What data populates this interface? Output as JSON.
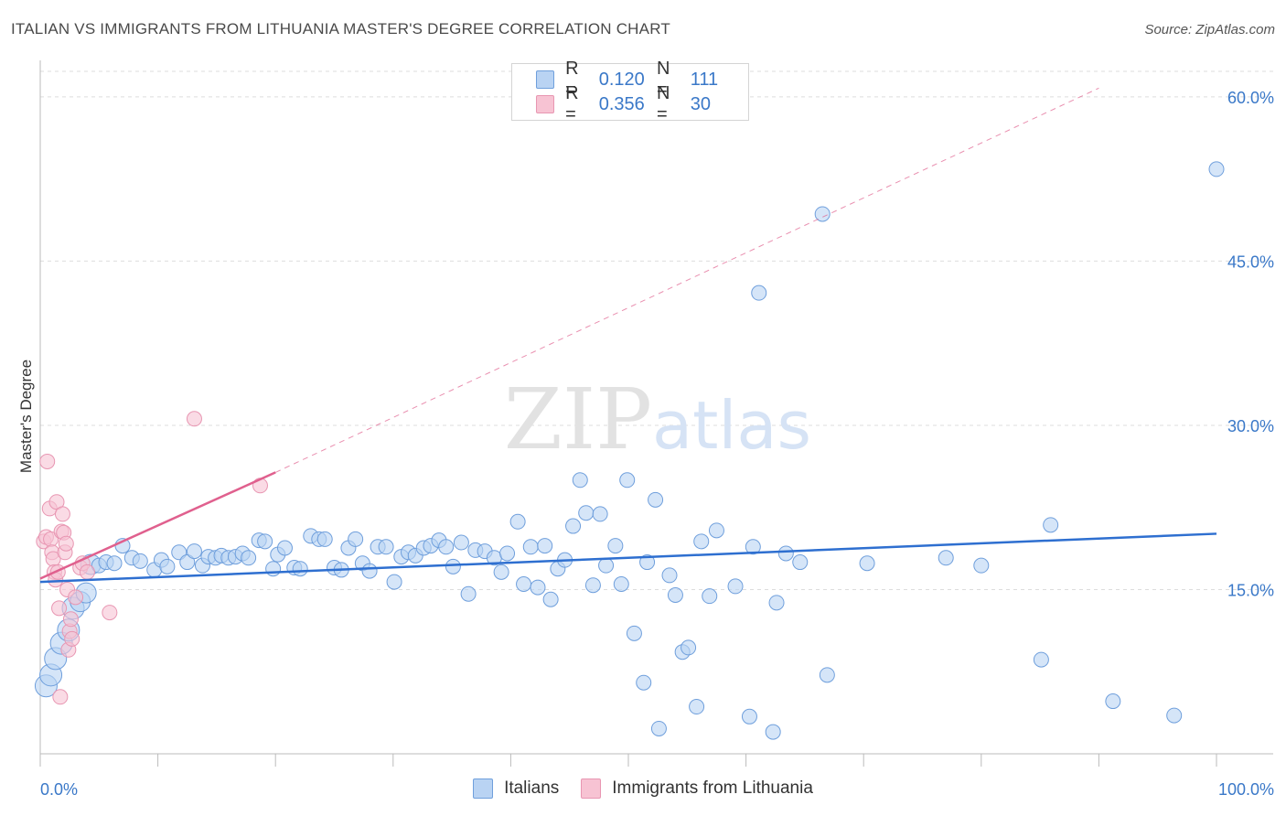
{
  "header": {
    "title": "ITALIAN VS IMMIGRANTS FROM LITHUANIA MASTER'S DEGREE CORRELATION CHART",
    "source": "Source: ZipAtlas.com"
  },
  "watermark": {
    "zip": "ZIP",
    "atlas": "atlas"
  },
  "legend": {
    "rows": [
      {
        "r_label": "R =",
        "r_value": "0.120",
        "n_label": "N =",
        "n_value": "111"
      },
      {
        "r_label": "R =",
        "r_value": "0.356",
        "n_label": "N =",
        "n_value": "30"
      }
    ]
  },
  "colors": {
    "italians_fill": "#b9d3f3",
    "italians_stroke": "#6f9fdc",
    "italians_line": "#2e6fd0",
    "lithuania_fill": "#f7c3d3",
    "lithuania_stroke": "#e896b2",
    "lithuania_line": "#e0608e",
    "grid": "#dddddd",
    "tick_label": "#3a78c8"
  },
  "chart_data": {
    "type": "scatter",
    "title": "ITALIAN VS IMMIGRANTS FROM LITHUANIA MASTER'S DEGREE CORRELATION CHART",
    "xlabel": "",
    "ylabel": "Master's Degree",
    "xlim": [
      0,
      100
    ],
    "ylim": [
      0,
      63
    ],
    "x_tick_labels": [
      "0.0%",
      "100.0%"
    ],
    "y_ticks": [
      15,
      30,
      45,
      60
    ],
    "y_tick_labels": [
      "15.0%",
      "30.0%",
      "45.0%",
      "60.0%"
    ],
    "grid": "horizontal dashed",
    "legend_position": "top-center and bottom",
    "series": [
      {
        "name": "Italians",
        "R": 0.12,
        "N": 111,
        "trend": {
          "x": [
            0,
            100
          ],
          "y": [
            15.7,
            20.1
          ]
        },
        "points": [
          [
            0.5,
            6.2
          ],
          [
            0.9,
            7.2
          ],
          [
            1.3,
            8.7
          ],
          [
            1.8,
            10.1
          ],
          [
            2.4,
            11.3
          ],
          [
            2.8,
            13.3
          ],
          [
            3.4,
            13.9
          ],
          [
            3.9,
            14.7
          ],
          [
            4.3,
            17.3
          ],
          [
            5.0,
            17.2
          ],
          [
            5.6,
            17.5
          ],
          [
            6.3,
            17.4
          ],
          [
            7.0,
            19.0
          ],
          [
            7.8,
            17.9
          ],
          [
            8.5,
            17.6
          ],
          [
            9.7,
            16.8
          ],
          [
            10.3,
            17.7
          ],
          [
            10.8,
            17.1
          ],
          [
            11.8,
            18.4
          ],
          [
            12.5,
            17.5
          ],
          [
            13.1,
            18.5
          ],
          [
            13.8,
            17.2
          ],
          [
            14.3,
            18.0
          ],
          [
            14.9,
            17.9
          ],
          [
            15.4,
            18.1
          ],
          [
            16.0,
            17.9
          ],
          [
            16.6,
            18.0
          ],
          [
            17.2,
            18.3
          ],
          [
            17.7,
            17.9
          ],
          [
            18.6,
            19.5
          ],
          [
            19.1,
            19.4
          ],
          [
            19.8,
            16.9
          ],
          [
            20.2,
            18.2
          ],
          [
            20.8,
            18.8
          ],
          [
            21.6,
            17.0
          ],
          [
            22.1,
            16.9
          ],
          [
            23.0,
            19.9
          ],
          [
            23.7,
            19.6
          ],
          [
            24.2,
            19.6
          ],
          [
            25.0,
            17.0
          ],
          [
            25.6,
            16.8
          ],
          [
            26.2,
            18.8
          ],
          [
            26.8,
            19.6
          ],
          [
            27.4,
            17.4
          ],
          [
            28.0,
            16.7
          ],
          [
            28.7,
            18.9
          ],
          [
            29.4,
            18.9
          ],
          [
            30.1,
            15.7
          ],
          [
            30.7,
            18.0
          ],
          [
            31.3,
            18.4
          ],
          [
            31.9,
            18.1
          ],
          [
            32.6,
            18.8
          ],
          [
            33.2,
            19.0
          ],
          [
            33.9,
            19.5
          ],
          [
            34.5,
            18.9
          ],
          [
            35.1,
            17.1
          ],
          [
            35.8,
            19.3
          ],
          [
            36.4,
            14.6
          ],
          [
            37.0,
            18.6
          ],
          [
            37.8,
            18.5
          ],
          [
            38.6,
            17.9
          ],
          [
            39.2,
            16.6
          ],
          [
            39.7,
            18.3
          ],
          [
            40.6,
            21.2
          ],
          [
            41.1,
            15.5
          ],
          [
            41.7,
            18.9
          ],
          [
            42.3,
            15.2
          ],
          [
            42.9,
            19.0
          ],
          [
            43.4,
            14.1
          ],
          [
            44.0,
            16.9
          ],
          [
            44.6,
            17.7
          ],
          [
            45.3,
            20.8
          ],
          [
            45.9,
            25.0
          ],
          [
            46.4,
            22.0
          ],
          [
            47.0,
            15.4
          ],
          [
            47.6,
            21.9
          ],
          [
            48.1,
            17.2
          ],
          [
            48.9,
            19.0
          ],
          [
            49.4,
            15.5
          ],
          [
            49.9,
            25.0
          ],
          [
            50.5,
            11.0
          ],
          [
            51.3,
            6.5
          ],
          [
            51.6,
            17.5
          ],
          [
            52.3,
            23.2
          ],
          [
            52.6,
            2.3
          ],
          [
            53.5,
            16.3
          ],
          [
            54.0,
            14.5
          ],
          [
            54.6,
            9.3
          ],
          [
            55.1,
            9.7
          ],
          [
            55.8,
            4.3
          ],
          [
            56.2,
            19.4
          ],
          [
            56.9,
            14.4
          ],
          [
            57.5,
            20.4
          ],
          [
            59.1,
            15.3
          ],
          [
            60.3,
            3.4
          ],
          [
            60.6,
            18.9
          ],
          [
            61.1,
            42.1
          ],
          [
            62.3,
            2.0
          ],
          [
            62.6,
            13.8
          ],
          [
            63.4,
            18.3
          ],
          [
            64.6,
            17.5
          ],
          [
            66.5,
            49.3
          ],
          [
            66.9,
            7.2
          ],
          [
            85.1,
            8.6
          ],
          [
            85.9,
            20.9
          ],
          [
            91.2,
            4.8
          ],
          [
            96.4,
            3.5
          ],
          [
            100.0,
            53.4
          ],
          [
            80.0,
            17.2
          ],
          [
            77.0,
            17.9
          ],
          [
            70.3,
            17.4
          ]
        ]
      },
      {
        "name": "Immigrants from Lithuania",
        "R": 0.356,
        "N": 30,
        "trend": {
          "x": [
            0,
            20
          ],
          "y": [
            16.0,
            25.7
          ]
        },
        "trend_extension": {
          "x": [
            20,
            90
          ],
          "y": [
            25.7,
            60.8
          ]
        },
        "points": [
          [
            0.3,
            19.4
          ],
          [
            0.5,
            19.8
          ],
          [
            0.6,
            26.7
          ],
          [
            0.8,
            22.4
          ],
          [
            0.9,
            19.6
          ],
          [
            1.0,
            18.4
          ],
          [
            1.1,
            17.8
          ],
          [
            1.2,
            16.6
          ],
          [
            1.3,
            15.9
          ],
          [
            1.4,
            23.0
          ],
          [
            1.5,
            16.6
          ],
          [
            1.6,
            13.3
          ],
          [
            1.7,
            5.2
          ],
          [
            1.8,
            20.3
          ],
          [
            1.9,
            21.9
          ],
          [
            2.0,
            20.2
          ],
          [
            2.1,
            18.4
          ],
          [
            2.2,
            19.2
          ],
          [
            2.3,
            15.0
          ],
          [
            2.4,
            9.5
          ],
          [
            2.5,
            11.2
          ],
          [
            2.6,
            12.3
          ],
          [
            2.7,
            10.5
          ],
          [
            3.0,
            14.3
          ],
          [
            3.4,
            17.0
          ],
          [
            3.6,
            17.4
          ],
          [
            4.0,
            16.6
          ],
          [
            5.9,
            12.9
          ],
          [
            13.1,
            30.6
          ],
          [
            18.7,
            24.5
          ]
        ]
      }
    ]
  }
}
